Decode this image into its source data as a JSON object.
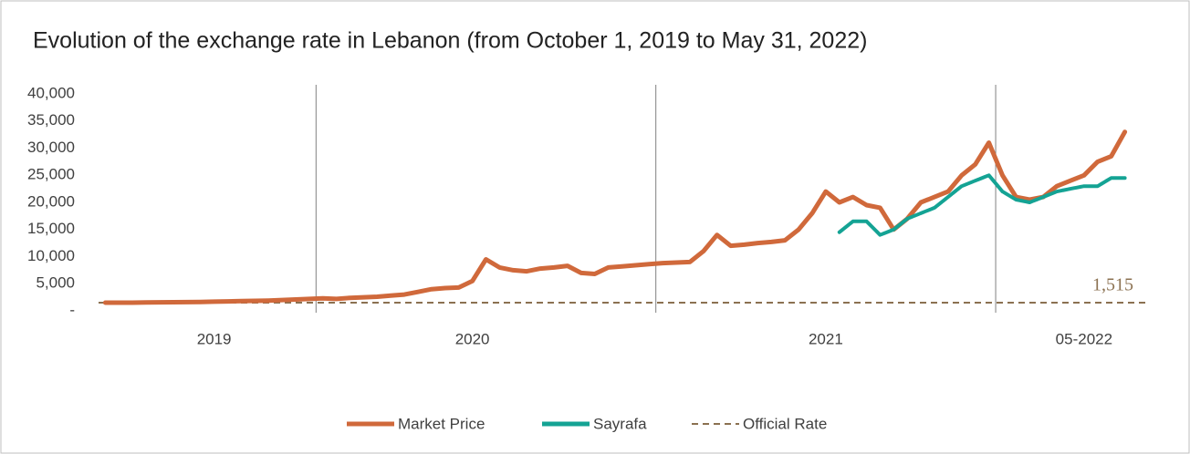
{
  "chart_data": {
    "type": "line",
    "title": "Evolution of the exchange rate in Lebanon (from October 1, 2019 to May 31, 2022)",
    "categories": [
      null,
      null,
      null,
      null,
      null,
      null,
      null,
      null,
      "2019",
      null,
      null,
      null,
      null,
      null,
      null,
      null,
      null,
      null,
      null,
      null,
      null,
      null,
      null,
      null,
      null,
      null,
      null,
      "2020",
      null,
      null,
      null,
      null,
      null,
      null,
      null,
      null,
      null,
      null,
      null,
      null,
      null,
      null,
      null,
      null,
      null,
      null,
      null,
      null,
      null,
      null,
      null,
      null,
      null,
      "2021",
      null,
      null,
      null,
      null,
      null,
      null,
      null,
      null,
      null,
      null,
      null,
      null,
      null,
      null,
      null,
      null,
      null,
      null,
      "05-2022",
      null,
      null,
      null
    ],
    "series": [
      {
        "name": "Market Price",
        "color": "#d0693b",
        "values": [
          1507,
          1510,
          1520,
          1550,
          1580,
          1600,
          1620,
          1650,
          1700,
          1750,
          1800,
          1850,
          1900,
          2000,
          2100,
          2200,
          2300,
          2200,
          2400,
          2500,
          2600,
          2800,
          3000,
          3500,
          4000,
          4200,
          4300,
          5500,
          9500,
          8000,
          7500,
          7300,
          7800,
          8000,
          8300,
          7000,
          6800,
          8000,
          8200,
          8400,
          8600,
          8800,
          8900,
          9000,
          11000,
          14000,
          12000,
          12200,
          12500,
          12700,
          13000,
          15000,
          18000,
          22000,
          20000,
          21000,
          19500,
          19000,
          15000,
          17000,
          20000,
          21000,
          22000,
          25000,
          27000,
          31000,
          25000,
          21000,
          20500,
          21000,
          23000,
          24000,
          25000,
          27500,
          28500,
          33000
        ]
      },
      {
        "name": "Sayrafa",
        "color": "#14a394",
        "values": [
          null,
          null,
          null,
          null,
          null,
          null,
          null,
          null,
          null,
          null,
          null,
          null,
          null,
          null,
          null,
          null,
          null,
          null,
          null,
          null,
          null,
          null,
          null,
          null,
          null,
          null,
          null,
          null,
          null,
          null,
          null,
          null,
          null,
          null,
          null,
          null,
          null,
          null,
          null,
          null,
          null,
          null,
          null,
          null,
          null,
          null,
          null,
          null,
          null,
          null,
          null,
          null,
          null,
          null,
          14500,
          16500,
          16500,
          14000,
          15000,
          17000,
          18000,
          19000,
          21000,
          23000,
          24000,
          25000,
          22000,
          20500,
          20000,
          21000,
          22000,
          22500,
          23000,
          23000,
          24500,
          24500
        ]
      }
    ],
    "official_rate": {
      "name": "Official Rate",
      "value": 1515,
      "label": "1,515",
      "color": "#8b7151"
    },
    "ylim": [
      0,
      40000
    ],
    "yticks": [
      {
        "value": 0,
        "label": "-"
      },
      {
        "value": 5000,
        "label": "5,000"
      },
      {
        "value": 10000,
        "label": "10,000"
      },
      {
        "value": 15000,
        "label": "15,000"
      },
      {
        "value": 20000,
        "label": "20,000"
      },
      {
        "value": 25000,
        "label": "25,000"
      },
      {
        "value": 30000,
        "label": "30,000"
      },
      {
        "value": 35000,
        "label": "35,000"
      },
      {
        "value": 40000,
        "label": "40,000"
      }
    ]
  }
}
